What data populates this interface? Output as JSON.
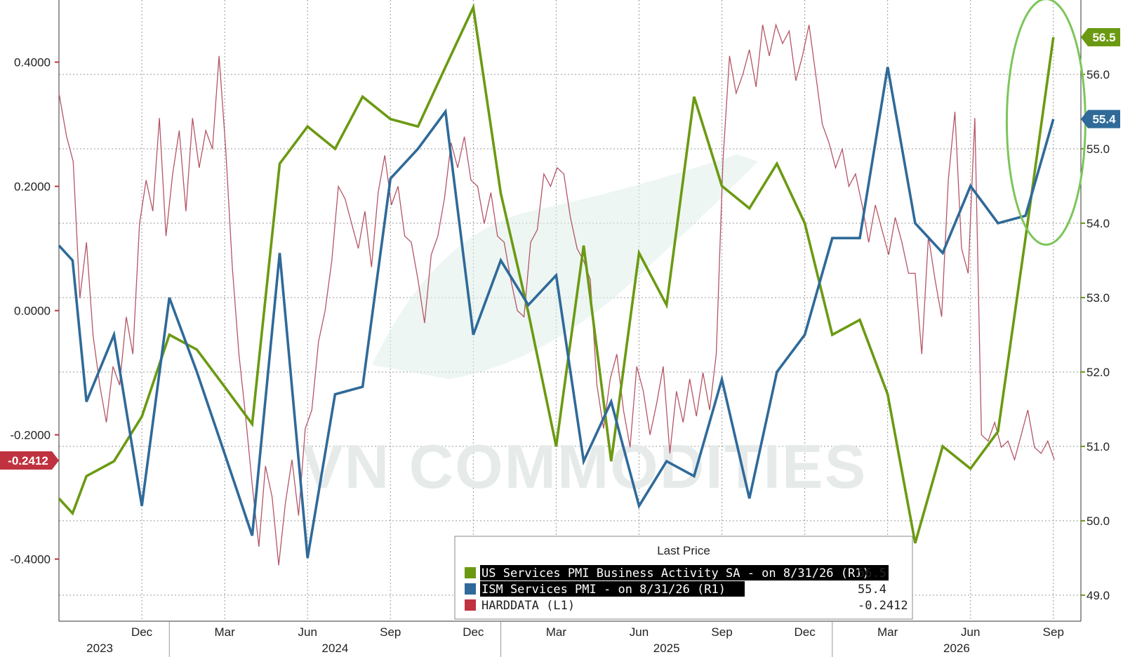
{
  "chart_data": {
    "type": "line",
    "left_axis": {
      "min": -0.5,
      "max": 0.5,
      "ticks": [
        0.4,
        0.2,
        0.0,
        -0.2,
        -0.4
      ],
      "tick_labels": [
        "0.4000",
        "0.2000",
        "0.0000",
        "-0.2000",
        "-0.4000"
      ]
    },
    "right_axis": {
      "min": 48.65,
      "max": 57.0,
      "ticks": [
        56,
        55,
        54,
        53,
        52,
        51,
        50,
        49
      ],
      "tick_labels": [
        "56.0",
        "55.0",
        "54.0",
        "53.0",
        "52.0",
        "51.0",
        "50.0",
        "49.0"
      ]
    },
    "time_axis": {
      "start": 2023.667,
      "end": 2026.75,
      "month_ticks": [
        {
          "label": "Dec",
          "t": 2023.917
        },
        {
          "label": "Mar",
          "t": 2024.167
        },
        {
          "label": "Jun",
          "t": 2024.417
        },
        {
          "label": "Sep",
          "t": 2024.667
        },
        {
          "label": "Dec",
          "t": 2024.917
        },
        {
          "label": "Mar",
          "t": 2025.167
        },
        {
          "label": "Jun",
          "t": 2025.417
        },
        {
          "label": "Sep",
          "t": 2025.667
        },
        {
          "label": "Dec",
          "t": 2025.917
        },
        {
          "label": "Mar",
          "t": 2026.167
        },
        {
          "label": "Jun",
          "t": 2026.417
        },
        {
          "label": "Sep",
          "t": 2026.667
        }
      ],
      "year_labels": [
        {
          "label": "2023",
          "t": 2023.79
        },
        {
          "label": "2024",
          "t": 2024.5
        },
        {
          "label": "2025",
          "t": 2025.5
        },
        {
          "label": "2026",
          "t": 2026.375
        }
      ],
      "year_boundaries": [
        2024.0,
        2025.0,
        2026.0
      ]
    },
    "grid": true,
    "series": [
      {
        "key": "us_services_pmi",
        "axis": "right",
        "color": "#6b9a12",
        "t": [
          2023.667,
          2023.708,
          2023.75,
          2023.833,
          2023.917,
          2024.0,
          2024.083,
          2024.167,
          2024.25,
          2024.333,
          2024.417,
          2024.5,
          2024.583,
          2024.667,
          2024.75,
          2024.833,
          2024.917,
          2025.0,
          2025.083,
          2025.167,
          2025.25,
          2025.333,
          2025.417,
          2025.5,
          2025.583,
          2025.667,
          2025.75,
          2025.833,
          2025.917,
          2026.0,
          2026.083,
          2026.167,
          2026.25,
          2026.333,
          2026.417,
          2026.5,
          2026.583,
          2026.667
        ],
        "values": [
          50.3,
          50.1,
          50.6,
          50.8,
          51.4,
          52.5,
          52.3,
          51.8,
          51.3,
          54.8,
          55.3,
          55.0,
          55.7,
          55.4,
          55.3,
          56.1,
          56.9,
          54.4,
          52.8,
          51.0,
          53.7,
          50.8,
          53.6,
          52.9,
          55.7,
          54.5,
          54.2,
          54.8,
          54.0,
          52.5,
          52.7,
          51.7,
          49.7,
          51.0,
          50.7,
          51.2,
          53.8,
          56.5
        ]
      },
      {
        "key": "ism_services_pmi",
        "axis": "right",
        "color": "#2f6a99",
        "t": [
          2023.667,
          2023.708,
          2023.75,
          2023.833,
          2023.917,
          2024.0,
          2024.083,
          2024.167,
          2024.25,
          2024.333,
          2024.417,
          2024.5,
          2024.583,
          2024.667,
          2024.75,
          2024.833,
          2024.917,
          2025.0,
          2025.083,
          2025.167,
          2025.25,
          2025.333,
          2025.417,
          2025.5,
          2025.583,
          2025.667,
          2025.75,
          2025.833,
          2025.917,
          2026.0,
          2026.083,
          2026.167,
          2026.25,
          2026.333,
          2026.417,
          2026.5,
          2026.583,
          2026.667
        ],
        "values": [
          53.7,
          53.5,
          51.6,
          52.5,
          50.2,
          53.0,
          52.0,
          50.9,
          49.8,
          53.6,
          49.5,
          51.7,
          51.8,
          54.6,
          55.0,
          55.5,
          52.5,
          53.5,
          52.9,
          53.3,
          50.8,
          51.6,
          50.2,
          50.8,
          50.6,
          51.9,
          50.3,
          52.0,
          52.5,
          53.8,
          53.8,
          56.1,
          54.0,
          53.6,
          54.5,
          54.0,
          54.1,
          55.4
        ]
      },
      {
        "key": "harddata",
        "axis": "left",
        "color": "#b45566",
        "t": [
          2023.667,
          2023.69,
          2023.71,
          2023.73,
          2023.75,
          2023.77,
          2023.79,
          2023.81,
          2023.83,
          2023.85,
          2023.87,
          2023.89,
          2023.91,
          2023.93,
          2023.95,
          2023.97,
          2023.99,
          2024.01,
          2024.03,
          2024.05,
          2024.07,
          2024.09,
          2024.11,
          2024.13,
          2024.15,
          2024.17,
          2024.19,
          2024.21,
          2024.23,
          2024.25,
          2024.27,
          2024.29,
          2024.31,
          2024.33,
          2024.35,
          2024.37,
          2024.39,
          2024.41,
          2024.43,
          2024.45,
          2024.47,
          2024.49,
          2024.51,
          2024.53,
          2024.55,
          2024.57,
          2024.59,
          2024.61,
          2024.63,
          2024.65,
          2024.67,
          2024.69,
          2024.71,
          2024.73,
          2024.75,
          2024.77,
          2024.79,
          2024.81,
          2024.83,
          2024.85,
          2024.87,
          2024.89,
          2024.91,
          2024.93,
          2024.95,
          2024.97,
          2024.99,
          2025.01,
          2025.03,
          2025.05,
          2025.07,
          2025.09,
          2025.11,
          2025.13,
          2025.15,
          2025.17,
          2025.19,
          2025.21,
          2025.23,
          2025.25,
          2025.27,
          2025.29,
          2025.31,
          2025.33,
          2025.35,
          2025.37,
          2025.39,
          2025.41,
          2025.43,
          2025.45,
          2025.47,
          2025.49,
          2025.51,
          2025.53,
          2025.55,
          2025.57,
          2025.59,
          2025.61,
          2025.63,
          2025.65,
          2025.67,
          2025.69,
          2025.71,
          2025.73,
          2025.75,
          2025.77,
          2025.79,
          2025.81,
          2025.83,
          2025.85,
          2025.87,
          2025.89,
          2025.91,
          2025.93,
          2025.95,
          2025.97,
          2025.99,
          2026.01,
          2026.03,
          2026.05,
          2026.07,
          2026.09,
          2026.11,
          2026.13,
          2026.15,
          2026.17,
          2026.19,
          2026.21,
          2026.23,
          2026.25,
          2026.27,
          2026.29,
          2026.31,
          2026.33,
          2026.35,
          2026.37,
          2026.39,
          2026.41,
          2026.43,
          2026.45,
          2026.47,
          2026.49,
          2026.51,
          2026.53,
          2026.55,
          2026.57,
          2026.59,
          2026.61,
          2026.63,
          2026.65,
          2026.67
        ],
        "values": [
          0.35,
          0.28,
          0.24,
          0.02,
          0.11,
          -0.04,
          -0.12,
          -0.18,
          -0.09,
          -0.12,
          -0.01,
          -0.07,
          0.14,
          0.21,
          0.16,
          0.31,
          0.12,
          0.22,
          0.29,
          0.16,
          0.31,
          0.23,
          0.29,
          0.26,
          0.41,
          0.26,
          0.07,
          -0.07,
          -0.17,
          -0.28,
          -0.38,
          -0.25,
          -0.3,
          -0.41,
          -0.31,
          -0.24,
          -0.33,
          -0.19,
          -0.16,
          -0.05,
          0.0,
          0.08,
          0.2,
          0.18,
          0.14,
          0.1,
          0.16,
          0.07,
          0.19,
          0.25,
          0.17,
          0.2,
          0.12,
          0.11,
          0.05,
          -0.02,
          0.09,
          0.12,
          0.18,
          0.27,
          0.23,
          0.28,
          0.21,
          0.2,
          0.14,
          0.19,
          0.12,
          0.11,
          0.05,
          0.0,
          -0.01,
          0.11,
          0.13,
          0.22,
          0.2,
          0.23,
          0.22,
          0.15,
          0.1,
          0.08,
          0.05,
          -0.12,
          -0.19,
          -0.11,
          -0.07,
          -0.16,
          -0.22,
          -0.09,
          -0.13,
          -0.2,
          -0.15,
          -0.09,
          -0.23,
          -0.13,
          -0.18,
          -0.11,
          -0.17,
          -0.1,
          -0.16,
          -0.07,
          0.24,
          0.41,
          0.35,
          0.38,
          0.42,
          0.36,
          0.46,
          0.41,
          0.46,
          0.43,
          0.45,
          0.37,
          0.41,
          0.46,
          0.38,
          0.3,
          0.27,
          0.23,
          0.26,
          0.2,
          0.22,
          0.17,
          0.11,
          0.17,
          0.13,
          0.09,
          0.15,
          0.11,
          0.06,
          0.06,
          -0.07,
          0.12,
          0.05,
          -0.01,
          0.21,
          0.32,
          0.1,
          0.06,
          0.31,
          -0.2,
          -0.21,
          -0.18,
          -0.22,
          -0.21,
          -0.24,
          -0.2,
          -0.16,
          -0.22,
          -0.23,
          -0.21,
          -0.24
        ]
      }
    ],
    "badges": [
      {
        "series": "us_services_pmi",
        "axis": "right",
        "value": 56.5,
        "text": "56.5",
        "color": "#6b9a12"
      },
      {
        "series": "ism_services_pmi",
        "axis": "right",
        "value": 55.4,
        "text": "55.4",
        "color": "#2f6a99"
      },
      {
        "series": "harddata",
        "axis": "left",
        "value": -0.2412,
        "text": "-0.2412",
        "color": "#c0323f"
      }
    ],
    "highlight": {
      "shape": "ellipse",
      "color": "#7cc55a",
      "t": 2026.645,
      "value_right": 55.4
    },
    "legend": {
      "placement": "bottom-center",
      "title": "Last Price",
      "entries": [
        {
          "label": "US Services PMI Business Activity SA -  on 8/31/26  (R1)",
          "value": "56.5",
          "color": "#6b9a12",
          "highlighted": true
        },
        {
          "label": "ISM Services PMI -  on 8/31/26  (R1)",
          "value": "55.4",
          "color": "#2f6a99",
          "highlighted": true
        },
        {
          "label": "HARDDATA  (L1)",
          "value": "-0.2412",
          "color": "#c0323f",
          "highlighted": false
        }
      ]
    },
    "watermark": "VN COMMODITIES"
  }
}
